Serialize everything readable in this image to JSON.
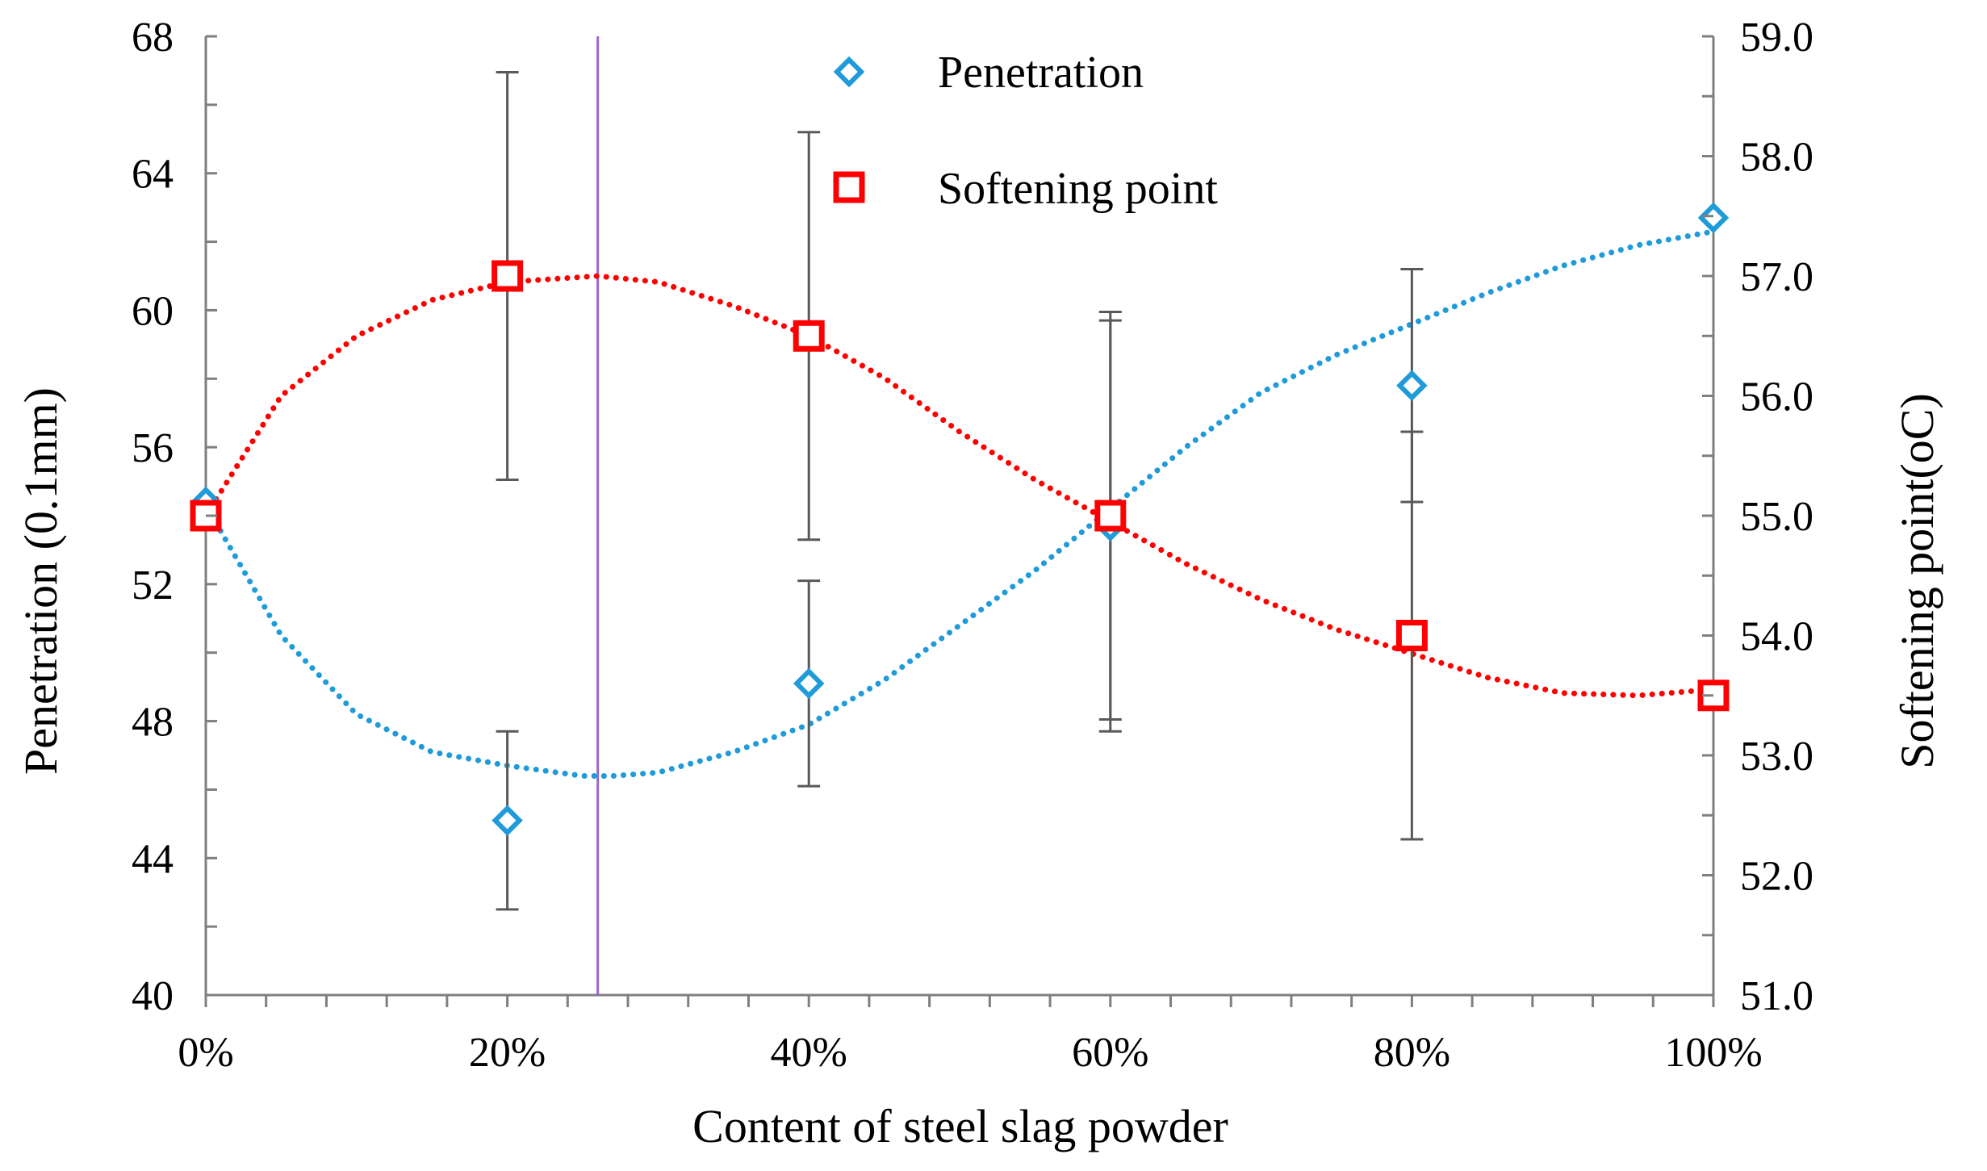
{
  "chart_data": {
    "type": "scatter",
    "title": "",
    "xlabel": "Content of steel slag powder",
    "ylabel": "Penetration (0.1mm)",
    "y2label": "Softening point(oC)",
    "x": [
      0,
      20,
      40,
      60,
      80,
      100
    ],
    "x_tick_labels": [
      "0%",
      "20%",
      "40%",
      "60%",
      "80%",
      "100%"
    ],
    "xlim": [
      0,
      100
    ],
    "ylim": [
      40,
      68
    ],
    "y_ticks": [
      40,
      44,
      48,
      52,
      56,
      60,
      64,
      68
    ],
    "y_tick_labels": [
      "40",
      "44",
      "48",
      "52",
      "56",
      "60",
      "64",
      "68"
    ],
    "y2lim": [
      51.0,
      59.0
    ],
    "y2_ticks": [
      51,
      52,
      53,
      54,
      55,
      56,
      57,
      58,
      59
    ],
    "y2_tick_labels": [
      "51.0",
      "52.0",
      "53.0",
      "54.0",
      "55.0",
      "56.0",
      "57.0",
      "58.0",
      "59.0"
    ],
    "grid": false,
    "legend_position": "top-center",
    "vertical_marker_x": 26,
    "series": [
      {
        "name": "Penetration",
        "axis": "left",
        "marker": "diamond",
        "color": "#1f9bd9",
        "values": [
          54.4,
          45.1,
          49.1,
          53.7,
          57.8,
          62.7
        ],
        "error": [
          null,
          2.6,
          3.0,
          6.0,
          3.4,
          null
        ],
        "trendline": "polynomial",
        "trend_points": [
          [
            0,
            54.3
          ],
          [
            5,
            50.5
          ],
          [
            10,
            48.2
          ],
          [
            15,
            47.1
          ],
          [
            20,
            46.7
          ],
          [
            25,
            46.4
          ],
          [
            27,
            46.4
          ],
          [
            30,
            46.5
          ],
          [
            35,
            47.1
          ],
          [
            40,
            47.9
          ],
          [
            45,
            49.2
          ],
          [
            50,
            50.8
          ],
          [
            55,
            52.4
          ],
          [
            60,
            54.2
          ],
          [
            65,
            56.0
          ],
          [
            70,
            57.6
          ],
          [
            75,
            58.7
          ],
          [
            80,
            59.6
          ],
          [
            85,
            60.5
          ],
          [
            90,
            61.3
          ],
          [
            95,
            61.9
          ],
          [
            100,
            62.3
          ]
        ]
      },
      {
        "name": "Softening point",
        "axis": "right",
        "marker": "square",
        "color": "#ff0000",
        "values": [
          55.0,
          57.0,
          56.5,
          55.0,
          54.0,
          53.5
        ],
        "error": [
          null,
          1.7,
          1.7,
          1.7,
          1.7,
          null
        ],
        "trendline": "polynomial",
        "trend_points": [
          [
            0,
            55.0
          ],
          [
            5,
            56.0
          ],
          [
            10,
            56.5
          ],
          [
            15,
            56.8
          ],
          [
            20,
            56.95
          ],
          [
            26,
            57.0
          ],
          [
            30,
            56.95
          ],
          [
            35,
            56.75
          ],
          [
            40,
            56.5
          ],
          [
            45,
            56.15
          ],
          [
            50,
            55.7
          ],
          [
            55,
            55.3
          ],
          [
            60,
            54.95
          ],
          [
            65,
            54.6
          ],
          [
            70,
            54.3
          ],
          [
            75,
            54.05
          ],
          [
            80,
            53.85
          ],
          [
            85,
            53.65
          ],
          [
            90,
            53.52
          ],
          [
            95,
            53.5
          ],
          [
            100,
            53.55
          ]
        ]
      }
    ]
  }
}
